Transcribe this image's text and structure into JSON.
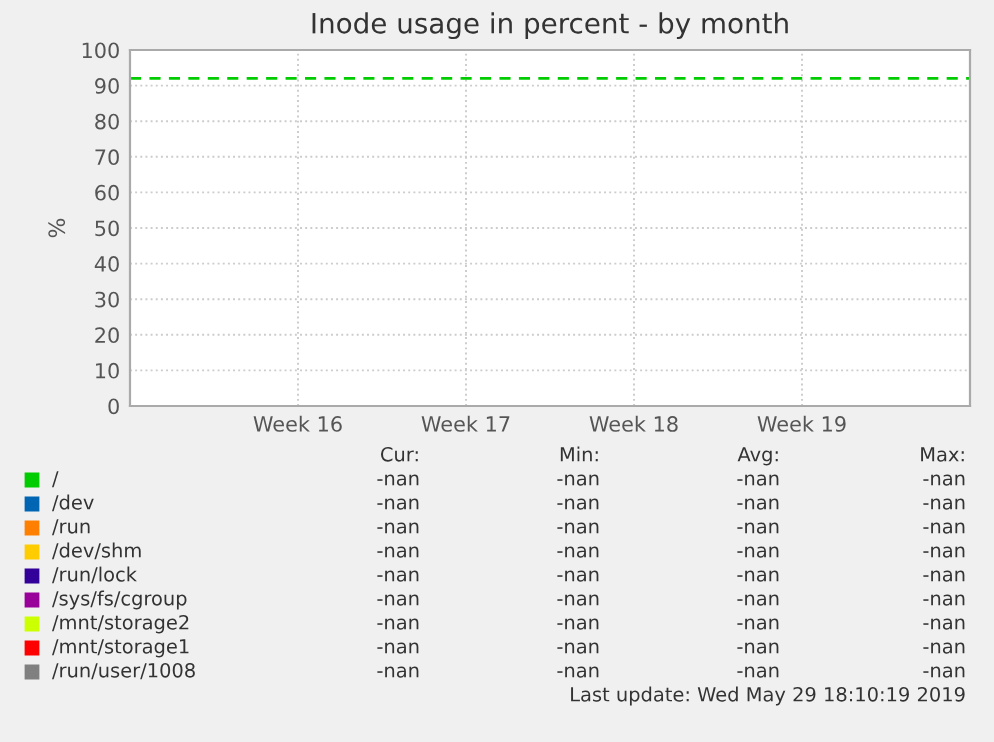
{
  "chart_data": {
    "type": "line",
    "title": "Inode usage in percent - by month",
    "ylabel": "%",
    "categories": [
      "Week 16",
      "Week 17",
      "Week 18",
      "Week 19"
    ],
    "ylim": [
      0,
      100
    ],
    "yticks": [
      0,
      10,
      20,
      30,
      40,
      50,
      60,
      70,
      80,
      90,
      100
    ],
    "grid": true,
    "legend": "bottom",
    "series": [
      {
        "name": "/",
        "color": "#00cc00",
        "values": [
          null,
          null,
          null,
          null
        ]
      },
      {
        "name": "/dev",
        "color": "#0066b3",
        "values": [
          null,
          null,
          null,
          null
        ]
      },
      {
        "name": "/run",
        "color": "#ff8000",
        "values": [
          null,
          null,
          null,
          null
        ]
      },
      {
        "name": "/dev/shm",
        "color": "#ffcc00",
        "values": [
          null,
          null,
          null,
          null
        ]
      },
      {
        "name": "/run/lock",
        "color": "#330099",
        "values": [
          null,
          null,
          null,
          null
        ]
      },
      {
        "name": "/sys/fs/cgroup",
        "color": "#990099",
        "values": [
          null,
          null,
          null,
          null
        ]
      },
      {
        "name": "/mnt/storage2",
        "color": "#ccff00",
        "values": [
          null,
          null,
          null,
          null
        ]
      },
      {
        "name": "/mnt/storage1",
        "color": "#ff0000",
        "values": [
          null,
          null,
          null,
          null
        ]
      },
      {
        "name": "/run/user/1008",
        "color": "#808080",
        "values": [
          null,
          null,
          null,
          null
        ]
      }
    ],
    "ref_lines": [
      {
        "axis": "y",
        "value": 92,
        "color": "#00cc00",
        "line_style": "dashed"
      }
    ],
    "annotations": [
      "Cur:",
      "Min:",
      "Avg:",
      "Max:",
      "-nan",
      "-nan",
      "-nan",
      "-nan",
      "-nan",
      "-nan",
      "-nan",
      "-nan",
      "-nan",
      "-nan",
      "-nan",
      "-nan",
      "-nan",
      "-nan",
      "-nan",
      "-nan",
      "-nan",
      "-nan",
      "-nan",
      "-nan",
      "-nan",
      "-nan",
      "-nan",
      "-nan",
      "-nan",
      "-nan",
      "-nan",
      "-nan",
      "-nan",
      "-nan",
      "-nan",
      "-nan",
      "-nan",
      "-nan",
      "-nan",
      "-nan",
      "Last update: Wed May 29 18:10:19 2019"
    ]
  }
}
